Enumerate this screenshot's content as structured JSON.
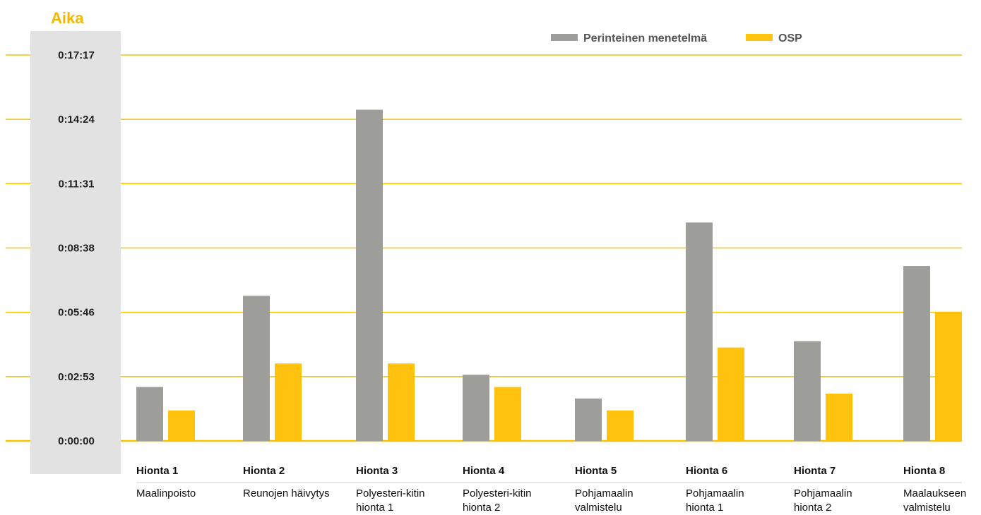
{
  "chart_data": {
    "type": "bar",
    "ylabel": "Aika",
    "yticks": [
      "0:00:00",
      "0:02:53",
      "0:05:46",
      "0:08:38",
      "0:11:31",
      "0:14:24",
      "0:17:17"
    ],
    "ylim_seconds": [
      0,
      1037
    ],
    "categories": [
      {
        "name": "Hionta 1",
        "sub": [
          "Maalinpoisto"
        ]
      },
      {
        "name": "Hionta 2",
        "sub": [
          "Reunojen häivytys"
        ]
      },
      {
        "name": "Hionta 3",
        "sub": [
          "Polyesteri-kitin",
          "hionta 1"
        ]
      },
      {
        "name": "Hionta 4",
        "sub": [
          "Polyesteri-kitin",
          "hionta 2"
        ]
      },
      {
        "name": "Hionta 5",
        "sub": [
          "Pohjamaalin",
          "valmistelu"
        ]
      },
      {
        "name": "Hionta 6",
        "sub": [
          "Pohjamaalin",
          "hionta 1"
        ]
      },
      {
        "name": "Hionta 7",
        "sub": [
          "Pohjamaalin",
          "hionta 2"
        ]
      },
      {
        "name": "Hionta 8",
        "sub": [
          "Maalaukseen",
          "valmistelu"
        ]
      }
    ],
    "series": [
      {
        "name": "Perinteinen menetelmä",
        "color": "#9d9d9a",
        "values_seconds": [
          145,
          390,
          890,
          178,
          114,
          587,
          268,
          470
        ]
      },
      {
        "name": "OSP",
        "color": "#ffc20e",
        "values_seconds": [
          82,
          208,
          208,
          145,
          82,
          251,
          127,
          347
        ]
      }
    ],
    "legend_position": "top-right",
    "grid": true,
    "grid_color": "#f5c400"
  }
}
